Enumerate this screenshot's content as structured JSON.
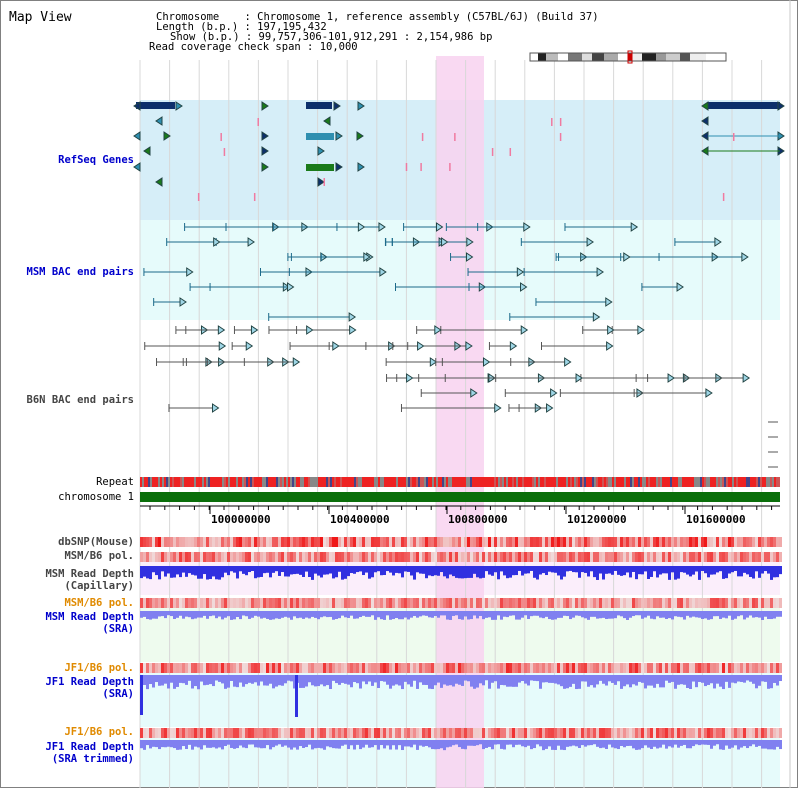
{
  "header": {
    "title": "Map View",
    "chromosome_label": "Chromosome",
    "chromosome_value": "Chromosome 1, reference assembly (C57BL/6J) (Build 37)",
    "length_label": "Length (b.p.)",
    "length_value": "197,195,432",
    "show_label": "Show (b.p.)",
    "show_value": "99,757,306-101,912,291 : 2,154,986 bp",
    "coverage_label": "Read coverage check span",
    "coverage_value": "10,000"
  },
  "tracks": {
    "refseq": "RefSeq Genes",
    "msm_bac": "MSM BAC end pairs",
    "b6n_bac": "B6N BAC end pairs",
    "repeat": "Repeat",
    "chromosome": "chromosome 1",
    "dbsnp": "dbSNP(Mouse)",
    "msm_b6_pol_1": "MSM/B6 pol.",
    "msm_read_depth_cap_1": "MSM Read Depth",
    "msm_read_depth_cap_2": "(Capillary)",
    "msm_b6_pol_2": "MSM/B6 pol.",
    "msm_read_depth_sra_1": "MSM Read Depth",
    "msm_read_depth_sra_2": "(SRA)",
    "jf1_b6_pol_1": "JF1/B6 pol.",
    "jf1_read_depth_sra_1": "JF1 Read Depth",
    "jf1_read_depth_sra_2": "(SRA)",
    "jf1_b6_pol_2": "JF1/B6 pol.",
    "jf1_read_depth_trim_1": "JF1 Read Depth",
    "jf1_read_depth_trim_2": "(SRA trimmed)"
  },
  "axis": {
    "ticks": [
      "100000000",
      "100400000",
      "100800000",
      "101200000",
      "101600000"
    ]
  },
  "colors": {
    "label_blue": "#0000cc",
    "label_orange": "#e08a00",
    "label_gray": "#444444",
    "refseq_bg": "#d6eef8",
    "bac_bg": "#e6fbfb",
    "highlight": "#f8d2f0",
    "gene_dark": "#0d2f6b",
    "gene_teal": "#2f8fb0",
    "gene_green": "#1a7a1a",
    "chromosome": "#0a6e0a",
    "depth_blue": "#3030e0",
    "depth_light": "#8080f0"
  }
}
